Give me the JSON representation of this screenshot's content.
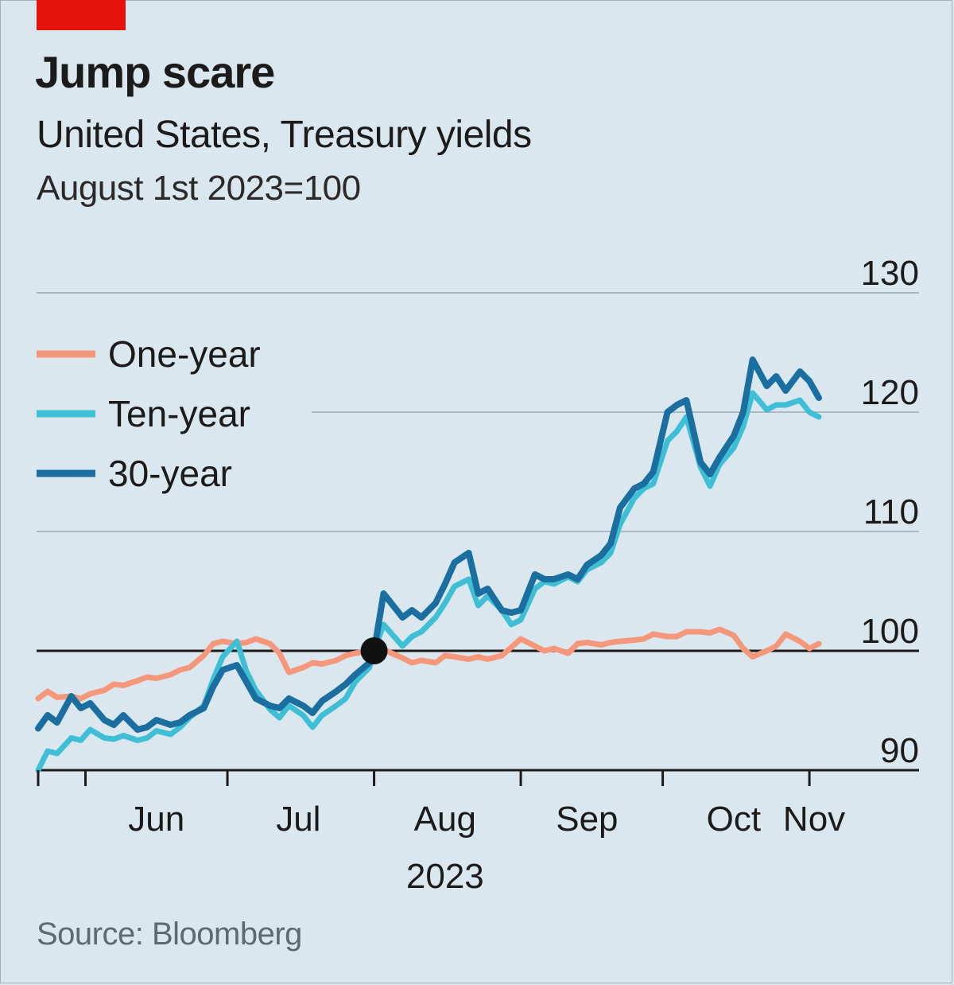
{
  "header": {
    "title": "Jump scare",
    "subtitle": "United States, Treasury yields",
    "note": "August 1st 2023=100"
  },
  "footer": {
    "source": "Source: Bloomberg"
  },
  "colors": {
    "one_year": "#f4977a",
    "ten_year": "#3ebfd6",
    "thirty_year": "#1a6ea0",
    "accent_red": "#e3120b",
    "background": "#dbe7ee"
  },
  "chart_data": {
    "type": "line",
    "title": "Jump scare",
    "subtitle": "United States, Treasury yields",
    "ylabel": "August 1st 2023=100",
    "ylim": [
      90,
      130
    ],
    "yticks": [
      90,
      100,
      110,
      120,
      130
    ],
    "x_axis": {
      "start": "2023-05-22",
      "end": "2023-11-03",
      "month_labels": [
        {
          "label": "Jun",
          "date": "2023-06-16"
        },
        {
          "label": "Jul",
          "date": "2023-07-16"
        },
        {
          "label": "Aug",
          "date": "2023-08-16"
        },
        {
          "label": "Sep",
          "date": "2023-09-15"
        },
        {
          "label": "Oct",
          "date": "2023-10-16"
        },
        {
          "label": "Nov",
          "date": "2023-11-02"
        }
      ],
      "month_ticks": [
        "2023-06-01",
        "2023-07-01",
        "2023-08-01",
        "2023-09-01",
        "2023-10-01",
        "2023-11-01"
      ],
      "year_label": "2023"
    },
    "legend": {
      "placement": "top-left"
    },
    "highlight_point": {
      "x": "2023-08-01",
      "y": 100
    },
    "series": [
      {
        "name": "One-year",
        "key": "one_year",
        "points": [
          [
            "2023-05-22",
            96.0
          ],
          [
            "2023-05-24",
            96.6
          ],
          [
            "2023-05-26",
            96.1
          ],
          [
            "2023-05-29",
            96.2
          ],
          [
            "2023-05-31",
            96.0
          ],
          [
            "2023-06-02",
            96.4
          ],
          [
            "2023-06-05",
            96.7
          ],
          [
            "2023-06-07",
            97.2
          ],
          [
            "2023-06-09",
            97.1
          ],
          [
            "2023-06-12",
            97.5
          ],
          [
            "2023-06-14",
            97.8
          ],
          [
            "2023-06-16",
            97.7
          ],
          [
            "2023-06-19",
            98.0
          ],
          [
            "2023-06-21",
            98.4
          ],
          [
            "2023-06-23",
            98.6
          ],
          [
            "2023-06-26",
            99.6
          ],
          [
            "2023-06-28",
            100.6
          ],
          [
            "2023-06-30",
            100.8
          ],
          [
            "2023-07-03",
            100.6
          ],
          [
            "2023-07-05",
            100.7
          ],
          [
            "2023-07-07",
            101.0
          ],
          [
            "2023-07-10",
            100.6
          ],
          [
            "2023-07-12",
            99.8
          ],
          [
            "2023-07-14",
            98.2
          ],
          [
            "2023-07-17",
            98.6
          ],
          [
            "2023-07-19",
            99.0
          ],
          [
            "2023-07-21",
            98.9
          ],
          [
            "2023-07-24",
            99.2
          ],
          [
            "2023-07-26",
            99.6
          ],
          [
            "2023-07-28",
            99.8
          ],
          [
            "2023-07-31",
            100.0
          ],
          [
            "2023-08-01",
            100.0
          ],
          [
            "2023-08-03",
            100.1
          ],
          [
            "2023-08-07",
            99.4
          ],
          [
            "2023-08-09",
            99.0
          ],
          [
            "2023-08-11",
            99.2
          ],
          [
            "2023-08-14",
            99.0
          ],
          [
            "2023-08-16",
            99.6
          ],
          [
            "2023-08-18",
            99.5
          ],
          [
            "2023-08-21",
            99.3
          ],
          [
            "2023-08-23",
            99.5
          ],
          [
            "2023-08-25",
            99.3
          ],
          [
            "2023-08-28",
            99.6
          ],
          [
            "2023-08-30",
            100.3
          ],
          [
            "2023-09-01",
            101.0
          ],
          [
            "2023-09-04",
            100.4
          ],
          [
            "2023-09-06",
            100.0
          ],
          [
            "2023-09-08",
            100.2
          ],
          [
            "2023-09-11",
            99.8
          ],
          [
            "2023-09-13",
            100.6
          ],
          [
            "2023-09-15",
            100.7
          ],
          [
            "2023-09-18",
            100.5
          ],
          [
            "2023-09-20",
            100.7
          ],
          [
            "2023-09-22",
            100.8
          ],
          [
            "2023-09-25",
            100.9
          ],
          [
            "2023-09-27",
            101.0
          ],
          [
            "2023-09-29",
            101.4
          ],
          [
            "2023-10-02",
            101.2
          ],
          [
            "2023-10-04",
            101.2
          ],
          [
            "2023-10-06",
            101.6
          ],
          [
            "2023-10-09",
            101.6
          ],
          [
            "2023-10-11",
            101.5
          ],
          [
            "2023-10-13",
            101.8
          ],
          [
            "2023-10-16",
            101.3
          ],
          [
            "2023-10-18",
            100.2
          ],
          [
            "2023-10-20",
            99.5
          ],
          [
            "2023-10-23",
            100.0
          ],
          [
            "2023-10-25",
            100.4
          ],
          [
            "2023-10-27",
            101.4
          ],
          [
            "2023-10-30",
            100.8
          ],
          [
            "2023-11-01",
            100.2
          ],
          [
            "2023-11-03",
            100.6
          ]
        ]
      },
      {
        "name": "Ten-year",
        "key": "ten_year",
        "points": [
          [
            "2023-05-22",
            90.0
          ],
          [
            "2023-05-24",
            91.6
          ],
          [
            "2023-05-26",
            91.4
          ],
          [
            "2023-05-29",
            92.7
          ],
          [
            "2023-05-31",
            92.5
          ],
          [
            "2023-06-02",
            93.4
          ],
          [
            "2023-06-05",
            92.7
          ],
          [
            "2023-06-07",
            92.6
          ],
          [
            "2023-06-09",
            92.9
          ],
          [
            "2023-06-12",
            92.5
          ],
          [
            "2023-06-14",
            92.7
          ],
          [
            "2023-06-16",
            93.3
          ],
          [
            "2023-06-19",
            93.0
          ],
          [
            "2023-06-21",
            93.6
          ],
          [
            "2023-06-23",
            94.4
          ],
          [
            "2023-06-26",
            95.4
          ],
          [
            "2023-06-28",
            97.6
          ],
          [
            "2023-06-30",
            99.5
          ],
          [
            "2023-07-03",
            100.8
          ],
          [
            "2023-07-05",
            98.3
          ],
          [
            "2023-07-07",
            96.7
          ],
          [
            "2023-07-10",
            95.1
          ],
          [
            "2023-07-12",
            94.4
          ],
          [
            "2023-07-14",
            95.4
          ],
          [
            "2023-07-17",
            94.6
          ],
          [
            "2023-07-19",
            93.6
          ],
          [
            "2023-07-21",
            94.6
          ],
          [
            "2023-07-24",
            95.4
          ],
          [
            "2023-07-26",
            96.0
          ],
          [
            "2023-07-28",
            97.4
          ],
          [
            "2023-07-31",
            98.6
          ],
          [
            "2023-08-01",
            100.0
          ],
          [
            "2023-08-03",
            102.2
          ],
          [
            "2023-08-07",
            100.4
          ],
          [
            "2023-08-09",
            101.2
          ],
          [
            "2023-08-11",
            101.6
          ],
          [
            "2023-08-14",
            102.8
          ],
          [
            "2023-08-16",
            104.0
          ],
          [
            "2023-08-18",
            105.4
          ],
          [
            "2023-08-21",
            106.0
          ],
          [
            "2023-08-23",
            103.8
          ],
          [
            "2023-08-25",
            104.6
          ],
          [
            "2023-08-28",
            103.4
          ],
          [
            "2023-08-30",
            102.2
          ],
          [
            "2023-09-01",
            102.6
          ],
          [
            "2023-09-04",
            105.2
          ],
          [
            "2023-09-06",
            105.8
          ],
          [
            "2023-09-08",
            105.6
          ],
          [
            "2023-09-11",
            106.2
          ],
          [
            "2023-09-13",
            105.8
          ],
          [
            "2023-09-15",
            106.8
          ],
          [
            "2023-09-18",
            107.4
          ],
          [
            "2023-09-20",
            108.2
          ],
          [
            "2023-09-22",
            110.6
          ],
          [
            "2023-09-25",
            112.8
          ],
          [
            "2023-09-27",
            113.6
          ],
          [
            "2023-09-29",
            114.0
          ],
          [
            "2023-10-02",
            117.6
          ],
          [
            "2023-10-04",
            118.4
          ],
          [
            "2023-10-06",
            119.6
          ],
          [
            "2023-10-09",
            115.4
          ],
          [
            "2023-10-11",
            113.8
          ],
          [
            "2023-10-13",
            115.6
          ],
          [
            "2023-10-16",
            117.0
          ],
          [
            "2023-10-18",
            118.8
          ],
          [
            "2023-10-20",
            121.6
          ],
          [
            "2023-10-23",
            120.2
          ],
          [
            "2023-10-25",
            120.6
          ],
          [
            "2023-10-27",
            120.6
          ],
          [
            "2023-10-30",
            121.0
          ],
          [
            "2023-11-01",
            120.0
          ],
          [
            "2023-11-03",
            119.6
          ]
        ]
      },
      {
        "name": "30-year",
        "key": "thirty_year",
        "points": [
          [
            "2023-05-22",
            93.5
          ],
          [
            "2023-05-24",
            94.6
          ],
          [
            "2023-05-26",
            94.0
          ],
          [
            "2023-05-29",
            96.2
          ],
          [
            "2023-05-31",
            95.2
          ],
          [
            "2023-06-02",
            95.6
          ],
          [
            "2023-06-05",
            94.2
          ],
          [
            "2023-06-07",
            93.8
          ],
          [
            "2023-06-09",
            94.6
          ],
          [
            "2023-06-12",
            93.4
          ],
          [
            "2023-06-14",
            93.6
          ],
          [
            "2023-06-16",
            94.2
          ],
          [
            "2023-06-19",
            93.8
          ],
          [
            "2023-06-21",
            94.0
          ],
          [
            "2023-06-23",
            94.6
          ],
          [
            "2023-06-26",
            95.2
          ],
          [
            "2023-06-28",
            97.0
          ],
          [
            "2023-06-30",
            98.4
          ],
          [
            "2023-07-03",
            98.8
          ],
          [
            "2023-07-05",
            97.4
          ],
          [
            "2023-07-07",
            96.0
          ],
          [
            "2023-07-10",
            95.4
          ],
          [
            "2023-07-12",
            95.2
          ],
          [
            "2023-07-14",
            96.0
          ],
          [
            "2023-07-17",
            95.4
          ],
          [
            "2023-07-19",
            94.8
          ],
          [
            "2023-07-21",
            95.8
          ],
          [
            "2023-07-24",
            96.6
          ],
          [
            "2023-07-26",
            97.2
          ],
          [
            "2023-07-28",
            98.0
          ],
          [
            "2023-07-31",
            99.0
          ],
          [
            "2023-08-01",
            100.0
          ],
          [
            "2023-08-03",
            104.8
          ],
          [
            "2023-08-07",
            102.8
          ],
          [
            "2023-08-09",
            103.4
          ],
          [
            "2023-08-11",
            102.8
          ],
          [
            "2023-08-14",
            104.0
          ],
          [
            "2023-08-16",
            105.6
          ],
          [
            "2023-08-18",
            107.4
          ],
          [
            "2023-08-21",
            108.2
          ],
          [
            "2023-08-23",
            104.8
          ],
          [
            "2023-08-25",
            105.2
          ],
          [
            "2023-08-28",
            103.4
          ],
          [
            "2023-08-30",
            103.2
          ],
          [
            "2023-09-01",
            103.4
          ],
          [
            "2023-09-04",
            106.4
          ],
          [
            "2023-09-06",
            106.0
          ],
          [
            "2023-09-08",
            106.0
          ],
          [
            "2023-09-11",
            106.4
          ],
          [
            "2023-09-13",
            106.0
          ],
          [
            "2023-09-15",
            107.2
          ],
          [
            "2023-09-18",
            108.0
          ],
          [
            "2023-09-20",
            109.0
          ],
          [
            "2023-09-22",
            112.0
          ],
          [
            "2023-09-25",
            113.6
          ],
          [
            "2023-09-27",
            114.0
          ],
          [
            "2023-09-29",
            115.0
          ],
          [
            "2023-10-02",
            120.0
          ],
          [
            "2023-10-04",
            120.6
          ],
          [
            "2023-10-06",
            121.0
          ],
          [
            "2023-10-09",
            115.8
          ],
          [
            "2023-10-11",
            114.8
          ],
          [
            "2023-10-13",
            116.2
          ],
          [
            "2023-10-16",
            118.0
          ],
          [
            "2023-10-18",
            120.0
          ],
          [
            "2023-10-20",
            124.4
          ],
          [
            "2023-10-23",
            122.2
          ],
          [
            "2023-10-25",
            123.0
          ],
          [
            "2023-10-27",
            121.8
          ],
          [
            "2023-10-30",
            123.4
          ],
          [
            "2023-11-01",
            122.6
          ],
          [
            "2023-11-03",
            121.2
          ]
        ]
      }
    ]
  }
}
